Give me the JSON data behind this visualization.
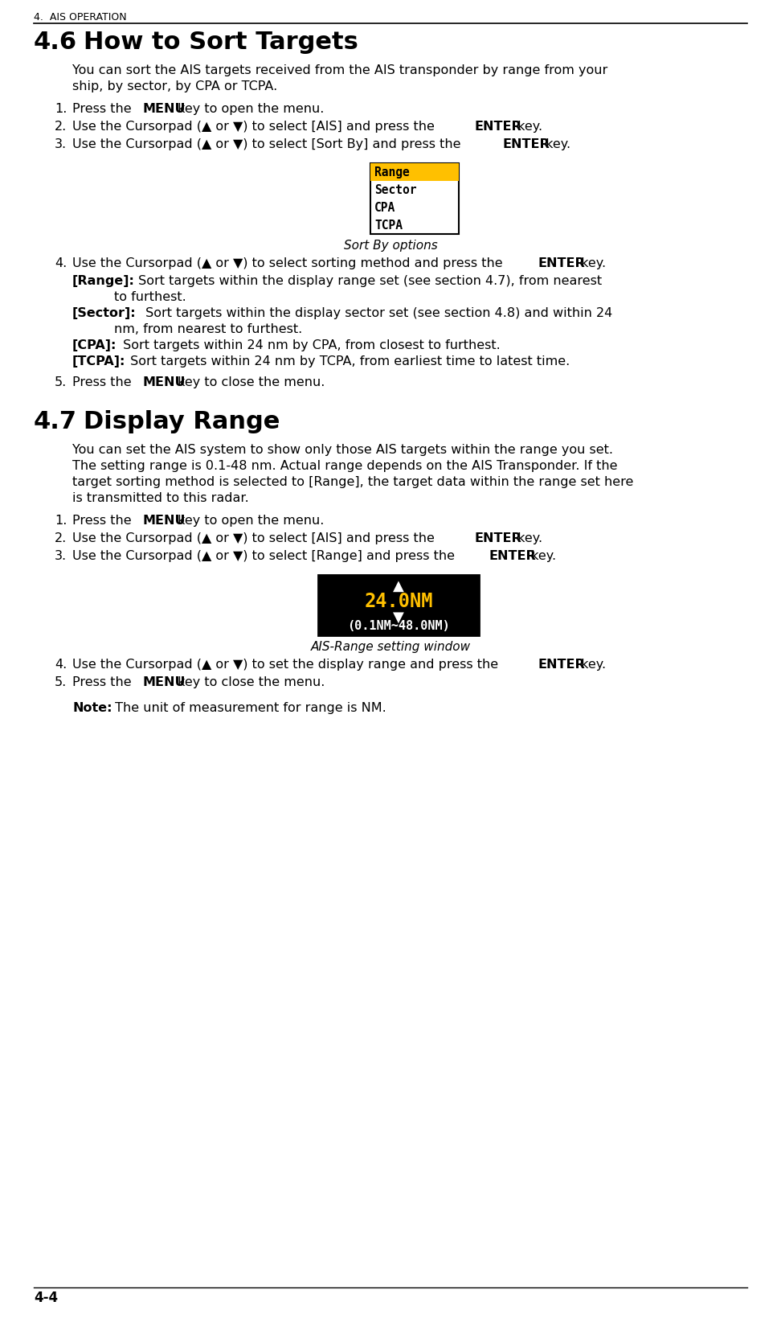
{
  "page_label": "4.  AIS OPERATION",
  "page_number": "4-4",
  "section_46_title": "4.6",
  "section_46_title2": "How to Sort Targets",
  "section_46_intro": [
    "You can sort the AIS targets received from the AIS transponder by range from your",
    "ship, by sector, by CPA or TCPA."
  ],
  "sort_by_items": [
    "Range",
    "Sector",
    "CPA",
    "TCPA"
  ],
  "sort_by_selected": 0,
  "sort_by_selected_bg": "#FFC000",
  "sort_by_caption": "Sort By options",
  "step4_46_details": [
    [
      "[Range]:",
      " Sort targets within the display range set (see section 4.7), from nearest"
    ],
    [
      "to furthest."
    ],
    [
      "[Sector]:",
      " Sort targets within the display sector set (see section 4.8) and within 24"
    ],
    [
      "nm, from nearest to furthest."
    ],
    [
      "[CPA]:",
      " Sort targets within 24 nm by CPA, from closest to furthest."
    ],
    [
      "[TCPA]:",
      " Sort targets within 24 nm by TCPA, from earliest time to latest time."
    ]
  ],
  "section_47_title": "4.7",
  "section_47_title2": "Display Range",
  "section_47_intro": [
    "You can set the AIS system to show only those AIS targets within the range you set.",
    "The setting range is 0.1-48 nm. Actual range depends on the AIS Transponder. If the",
    "target sorting method is selected to [Range], the target data within the range set here",
    "is transmitted to this radar."
  ],
  "range_box_value": "24.0NM",
  "range_box_range": "(0.1NM~48.0NM)",
  "range_box_value_color": "#FFC000",
  "range_caption": "AIS-Range setting window",
  "note_bold": "Note:",
  "note_rest": " The unit of measurement for range is NM.",
  "bg_color": "#FFFFFF",
  "text_color": "#000000",
  "body_size": 11.5,
  "header_size": 9,
  "page_num_size": 12
}
